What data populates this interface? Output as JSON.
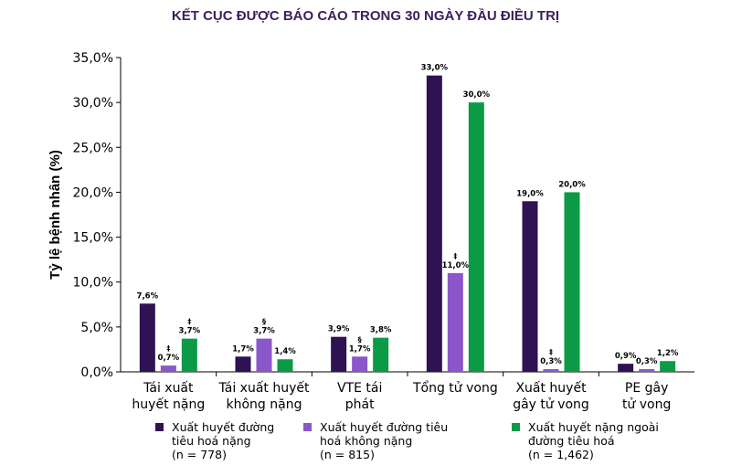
{
  "chart_data": {
    "type": "bar",
    "title": "KẾT CỤC ĐƯỢC BÁO CÁO TRONG 30 NGÀY ĐẦU ĐIỀU TRỊ",
    "ylabel": "Tỷ lệ bệnh nhân (%)",
    "xlabel": "",
    "ylim": [
      0,
      35
    ],
    "yticks": [
      "0,0%",
      "5,0%",
      "10,0%",
      "15,0%",
      "20,0%",
      "25,0%",
      "30,0%",
      "35,0%"
    ],
    "categories": [
      [
        "Tái xuất",
        "huyết nặng"
      ],
      [
        "Tái xuất huyết",
        "không nặng"
      ],
      [
        "VTE tái",
        "phát"
      ],
      [
        "Tổng tử vong"
      ],
      [
        "Xuất huyết",
        "gây tử vong"
      ],
      [
        "PE gây",
        "tử vong"
      ]
    ],
    "series": [
      {
        "name": [
          "Xuất huyết đường",
          "tiêu hoá nặng",
          "(n = 778)"
        ],
        "color": "#2e1251",
        "values": [
          7.6,
          1.7,
          3.9,
          33.0,
          19.0,
          0.9
        ],
        "labels": [
          "7,6%",
          "1,7%",
          "3,9%",
          "33,0%",
          "19,0%",
          "0,9%"
        ],
        "symbols": [
          "",
          "",
          "",
          "",
          "",
          ""
        ]
      },
      {
        "name": [
          "Xuất huyết đường tiêu",
          "hoá không nặng",
          "(n = 815)"
        ],
        "color": "#8a56c9",
        "values": [
          0.7,
          3.7,
          1.7,
          11.0,
          0.3,
          0.3
        ],
        "labels": [
          "0,7%",
          "3,7%",
          "1,7%",
          "11,0%",
          "0,3%",
          "0,3%"
        ],
        "symbols": [
          "‡",
          "§",
          "§",
          "‡",
          "‡",
          ""
        ]
      },
      {
        "name": [
          "Xuất huyết nặng ngoài",
          "đường tiêu hoá",
          "(n = 1,462)"
        ],
        "color": "#0b9a46",
        "values": [
          3.7,
          1.4,
          3.8,
          30.0,
          20.0,
          1.2
        ],
        "labels": [
          "3,7%",
          "1,4%",
          "3,8%",
          "30,0%",
          "20,0%",
          "1,2%"
        ],
        "symbols": [
          "‡",
          "",
          "",
          "",
          "",
          ""
        ]
      }
    ]
  }
}
